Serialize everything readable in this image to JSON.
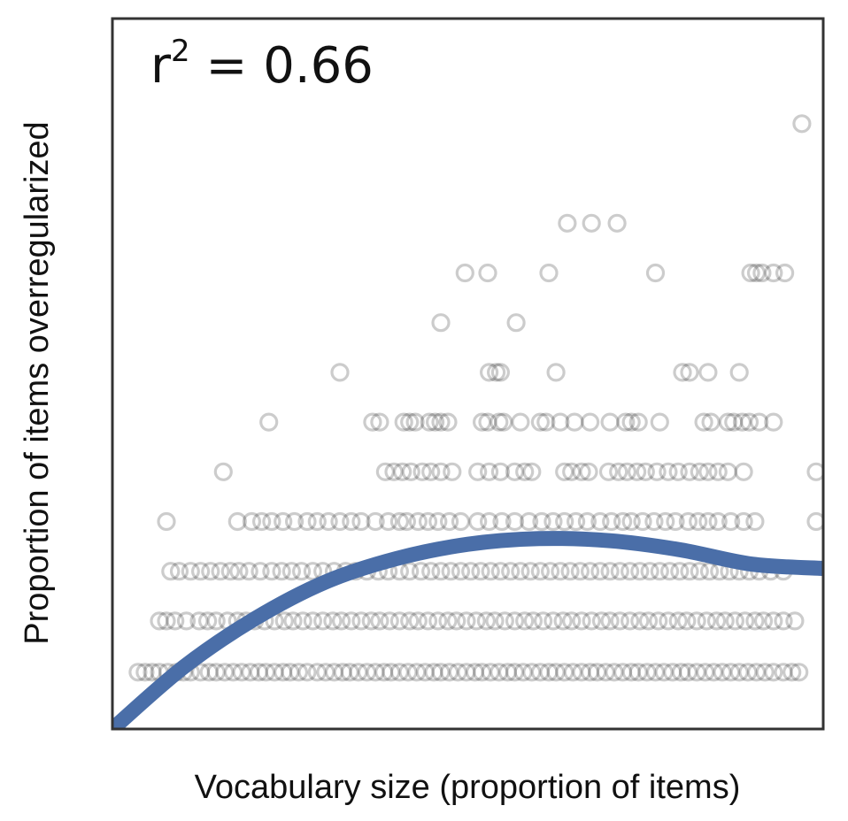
{
  "chart_data": {
    "type": "scatter",
    "title": "",
    "xlabel": "Vocabulary size (proportion of items)",
    "ylabel": "Proportion of items overregularized",
    "annotation": {
      "base": "r",
      "superscript": "2",
      "rest": " = 0.66"
    },
    "xlim": [
      0,
      1
    ],
    "ylim": [
      0,
      1
    ],
    "grid": false,
    "legend": "none",
    "colors": {
      "points": "#000000",
      "fit_line": "#4a6ea8",
      "frame": "#333333"
    },
    "fit_curve": {
      "x": [
        0.0,
        0.1,
        0.2,
        0.3,
        0.4,
        0.5,
        0.6,
        0.7,
        0.8,
        0.9,
        1.0
      ],
      "y": [
        0.0,
        0.087,
        0.155,
        0.207,
        0.24,
        0.26,
        0.268,
        0.265,
        0.252,
        0.232,
        0.226
      ]
    },
    "series": [
      {
        "levels": [
          {
            "y": 0.08,
            "x": [
              0.036,
              0.046,
              0.056,
              0.066,
              0.078,
              0.09,
              0.1,
              0.11,
              0.124,
              0.136,
              0.146,
              0.158,
              0.17,
              0.182,
              0.194,
              0.206,
              0.216,
              0.228,
              0.24,
              0.25,
              0.262,
              0.274,
              0.288,
              0.3,
              0.312,
              0.324,
              0.334,
              0.346,
              0.358,
              0.37,
              0.382,
              0.392,
              0.404,
              0.416,
              0.428,
              0.44,
              0.452,
              0.462,
              0.474,
              0.486,
              0.498,
              0.51,
              0.52,
              0.532,
              0.544,
              0.556,
              0.566,
              0.578,
              0.59,
              0.602,
              0.614,
              0.624,
              0.636,
              0.648,
              0.66,
              0.672,
              0.682,
              0.694,
              0.706,
              0.718,
              0.73,
              0.74,
              0.752,
              0.764,
              0.776,
              0.788,
              0.8,
              0.81,
              0.822,
              0.834,
              0.846,
              0.858,
              0.87,
              0.882,
              0.894,
              0.906,
              0.918,
              0.93,
              0.944,
              0.956,
              0.966
            ]
          },
          {
            "y": 0.152,
            "x": [
              0.066,
              0.076,
              0.088,
              0.104,
              0.122,
              0.134,
              0.146,
              0.162,
              0.176,
              0.188,
              0.2,
              0.214,
              0.228,
              0.242,
              0.254,
              0.268,
              0.282,
              0.296,
              0.31,
              0.322,
              0.336,
              0.35,
              0.364,
              0.376,
              0.39,
              0.404,
              0.418,
              0.43,
              0.444,
              0.458,
              0.472,
              0.484,
              0.498,
              0.512,
              0.526,
              0.538,
              0.552,
              0.566,
              0.58,
              0.592,
              0.606,
              0.62,
              0.634,
              0.646,
              0.66,
              0.674,
              0.688,
              0.7,
              0.714,
              0.728,
              0.742,
              0.754,
              0.768,
              0.782,
              0.796,
              0.808,
              0.822,
              0.836,
              0.85,
              0.862,
              0.876,
              0.89,
              0.904,
              0.916,
              0.93,
              0.944,
              0.96
            ]
          },
          {
            "y": 0.222,
            "x": [
              0.082,
              0.094,
              0.11,
              0.124,
              0.138,
              0.152,
              0.166,
              0.178,
              0.192,
              0.208,
              0.224,
              0.238,
              0.252,
              0.266,
              0.282,
              0.296,
              0.312,
              0.328,
              0.342,
              0.358,
              0.374,
              0.388,
              0.404,
              0.418,
              0.434,
              0.448,
              0.462,
              0.476,
              0.49,
              0.504,
              0.518,
              0.532,
              0.546,
              0.56,
              0.574,
              0.588,
              0.602,
              0.616,
              0.63,
              0.644,
              0.658,
              0.672,
              0.686,
              0.7,
              0.714,
              0.728,
              0.742,
              0.756,
              0.77,
              0.784,
              0.798,
              0.812,
              0.826,
              0.84,
              0.854,
              0.868,
              0.882,
              0.896,
              0.91,
              0.926,
              0.944
            ]
          },
          {
            "y": 0.292,
            "x": [
              0.076,
              0.176,
              0.196,
              0.21,
              0.224,
              0.24,
              0.256,
              0.274,
              0.288,
              0.304,
              0.32,
              0.336,
              0.35,
              0.37,
              0.388,
              0.404,
              0.414,
              0.43,
              0.444,
              0.458,
              0.474,
              0.49,
              0.514,
              0.53,
              0.548,
              0.566,
              0.586,
              0.604,
              0.62,
              0.636,
              0.652,
              0.668,
              0.686,
              0.702,
              0.718,
              0.73,
              0.746,
              0.762,
              0.778,
              0.792,
              0.81,
              0.824,
              0.838,
              0.852,
              0.87,
              0.888,
              0.904,
              0.99
            ]
          },
          {
            "y": 0.362,
            "x": [
              0.156,
              0.384,
              0.396,
              0.408,
              0.42,
              0.436,
              0.448,
              0.462,
              0.478,
              0.514,
              0.53,
              0.546,
              0.566,
              0.58,
              0.59,
              0.636,
              0.646,
              0.66,
              0.67,
              0.698,
              0.712,
              0.724,
              0.738,
              0.75,
              0.766,
              0.782,
              0.796,
              0.812,
              0.826,
              0.838,
              0.852,
              0.866,
              0.888,
              0.99
            ]
          },
          {
            "y": 0.432,
            "x": [
              0.22,
              0.366,
              0.376,
              0.41,
              0.418,
              0.426,
              0.446,
              0.454,
              0.462,
              0.472,
              0.52,
              0.528,
              0.544,
              0.55,
              0.574,
              0.602,
              0.61,
              0.63,
              0.65,
              0.672,
              0.7,
              0.722,
              0.73,
              0.74,
              0.77,
              0.832,
              0.842,
              0.866,
              0.874,
              0.886,
              0.896,
              0.91,
              0.93
            ]
          },
          {
            "y": 0.502,
            "x": [
              0.32,
              0.53,
              0.54,
              0.546,
              0.624,
              0.802,
              0.812,
              0.838,
              0.882
            ]
          },
          {
            "y": 0.572,
            "x": [
              0.462,
              0.568
            ]
          },
          {
            "y": 0.642,
            "x": [
              0.496,
              0.528,
              0.614,
              0.764,
              0.898,
              0.906,
              0.914,
              0.93,
              0.946
            ]
          },
          {
            "y": 0.712,
            "x": [
              0.64,
              0.674,
              0.71
            ]
          },
          {
            "y": 0.852,
            "x": [
              0.97
            ]
          }
        ]
      }
    ]
  }
}
